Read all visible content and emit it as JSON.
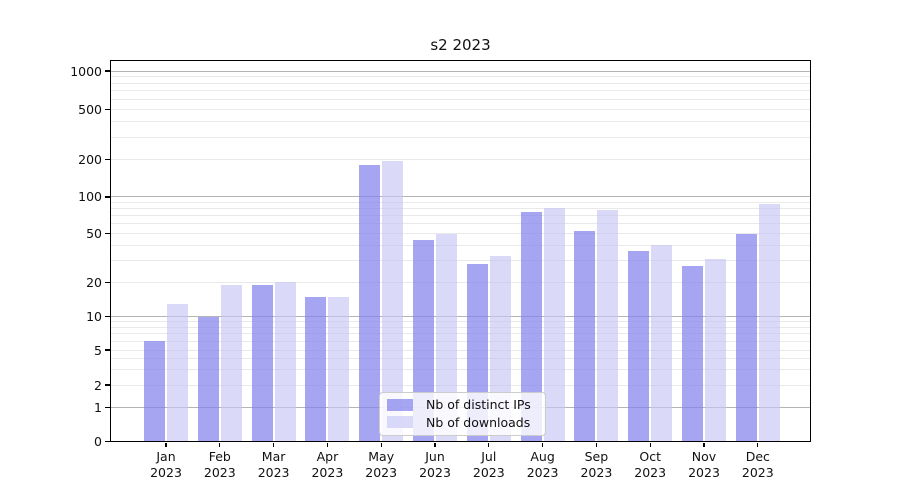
{
  "title": "s2 2023",
  "chart_data": {
    "type": "bar",
    "title": "s2 2023",
    "categories": [
      "Jan 2023",
      "Feb 2023",
      "Mar 2023",
      "Apr 2023",
      "May 2023",
      "Jun 2023",
      "Jul 2023",
      "Aug 2023",
      "Sep 2023",
      "Oct 2023",
      "Nov 2023",
      "Dec 2023"
    ],
    "series": [
      {
        "name": "Nb of distinct IPs",
        "key": "distinct-ips",
        "color": "#8282eb",
        "alpha": 0.72,
        "values": [
          6,
          10,
          19,
          15,
          180,
          44,
          28,
          75,
          53,
          36,
          27,
          50
        ]
      },
      {
        "name": "Nb of downloads",
        "key": "downloads",
        "color": "#c6c6f4",
        "alpha": 0.65,
        "values": [
          13,
          19,
          20,
          15,
          193,
          50,
          33,
          81,
          78,
          40,
          31,
          88
        ]
      }
    ],
    "xlabel": "",
    "ylabel": "",
    "yscale": "log-like with 0 baseline",
    "yticks": [
      0,
      1,
      2,
      5,
      10,
      20,
      50,
      100,
      200,
      500,
      1000
    ],
    "ylim": [
      0,
      1000
    ],
    "grid": "horizontal major and minor gridlines",
    "legend_position": "lower center"
  },
  "legend": {
    "items": [
      {
        "label": "Nb of distinct IPs"
      },
      {
        "label": "Nb of downloads"
      }
    ]
  },
  "colors": {
    "bar_distinct_ips": "#8282eb",
    "bar_downloads": "#c6c6f4",
    "grid_major": "#b5b5b5",
    "grid_minor": "#e9e9e9",
    "axis": "#000000",
    "text": "#111111",
    "legend_border": "#cccccc"
  }
}
